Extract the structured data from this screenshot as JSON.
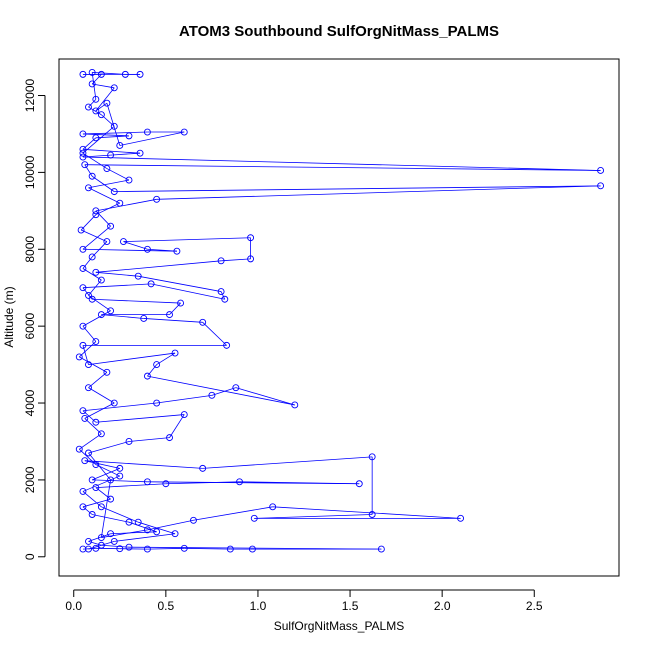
{
  "chart_data": {
    "type": "line",
    "title": "ATOM3 Southbound SulfOrgNitMass_PALMS",
    "xlabel": "SulfOrgNitMass_PALMS",
    "ylabel": "Altitude (m)",
    "xlim": [
      -0.08,
      2.96
    ],
    "ylim": [
      -500,
      12950
    ],
    "xticks": [
      0.0,
      0.5,
      1.0,
      1.5,
      2.0,
      2.5
    ],
    "xtick_labels": [
      "0.0",
      "0.5",
      "1.0",
      "1.5",
      "2.0",
      "2.5"
    ],
    "yticks": [
      0,
      2000,
      4000,
      6000,
      8000,
      10000,
      12000
    ],
    "ytick_labels": [
      "0",
      "2000",
      "4000",
      "6000",
      "8000",
      "10000",
      "12000"
    ],
    "grid": false,
    "series_color": "#0000ff",
    "series": [
      {
        "marker": "open-circle",
        "points": [
          [
            0.05,
            200
          ],
          [
            0.12,
            220
          ],
          [
            0.25,
            210
          ],
          [
            0.4,
            200
          ],
          [
            0.6,
            220
          ],
          [
            0.85,
            200
          ],
          [
            0.97,
            200
          ],
          [
            1.67,
            200
          ],
          [
            0.3,
            250
          ],
          [
            0.15,
            300
          ],
          [
            0.08,
            400
          ],
          [
            0.2,
            600
          ],
          [
            0.45,
            650
          ],
          [
            0.3,
            900
          ],
          [
            0.1,
            1100
          ],
          [
            0.05,
            1300
          ],
          [
            0.2,
            1500
          ],
          [
            0.12,
            1800
          ],
          [
            0.5,
            1900
          ],
          [
            0.9,
            1950
          ],
          [
            1.55,
            1900
          ],
          [
            0.4,
            1950
          ],
          [
            0.1,
            2000
          ],
          [
            0.25,
            2300
          ],
          [
            0.06,
            2500
          ],
          [
            0.7,
            2300
          ],
          [
            1.62,
            2600
          ],
          [
            1.62,
            1100
          ],
          [
            0.98,
            1000
          ],
          [
            2.1,
            1000
          ],
          [
            1.08,
            1300
          ],
          [
            0.65,
            950
          ],
          [
            0.4,
            700
          ],
          [
            0.15,
            500
          ],
          [
            0.2,
            2000
          ],
          [
            0.08,
            2700
          ],
          [
            0.3,
            3000
          ],
          [
            0.52,
            3100
          ],
          [
            0.6,
            3700
          ],
          [
            0.12,
            3500
          ],
          [
            0.05,
            3800
          ],
          [
            0.45,
            4000
          ],
          [
            0.75,
            4200
          ],
          [
            0.88,
            4400
          ],
          [
            1.2,
            3950
          ],
          [
            0.4,
            4700
          ],
          [
            0.45,
            5000
          ],
          [
            0.55,
            5300
          ],
          [
            0.08,
            5000
          ],
          [
            0.05,
            5500
          ],
          [
            0.83,
            5500
          ],
          [
            0.7,
            6100
          ],
          [
            0.38,
            6200
          ],
          [
            0.15,
            6300
          ],
          [
            0.52,
            6300
          ],
          [
            0.58,
            6600
          ],
          [
            0.1,
            6700
          ],
          [
            0.05,
            7000
          ],
          [
            0.42,
            7100
          ],
          [
            0.82,
            6700
          ],
          [
            0.8,
            6900
          ],
          [
            0.35,
            7300
          ],
          [
            0.12,
            7400
          ],
          [
            0.8,
            7700
          ],
          [
            0.96,
            7750
          ],
          [
            0.96,
            8300
          ],
          [
            0.27,
            8200
          ],
          [
            0.4,
            8000
          ],
          [
            0.56,
            7950
          ],
          [
            0.05,
            8000
          ],
          [
            0.2,
            8600
          ],
          [
            0.12,
            9000
          ],
          [
            0.45,
            9300
          ],
          [
            2.86,
            9650
          ],
          [
            0.22,
            9500
          ],
          [
            0.1,
            9900
          ],
          [
            0.06,
            10200
          ],
          [
            2.86,
            10050
          ],
          [
            0.05,
            10400
          ],
          [
            0.2,
            10450
          ],
          [
            0.36,
            10500
          ],
          [
            0.05,
            10600
          ],
          [
            0.12,
            10900
          ],
          [
            0.3,
            10950
          ],
          [
            0.05,
            11000
          ],
          [
            0.4,
            11050
          ],
          [
            0.6,
            11050
          ],
          [
            0.25,
            10700
          ],
          [
            0.18,
            11800
          ],
          [
            0.12,
            11600
          ],
          [
            0.22,
            12200
          ],
          [
            0.1,
            12300
          ],
          [
            0.15,
            12550
          ],
          [
            0.05,
            12550
          ],
          [
            0.36,
            12550
          ],
          [
            0.28,
            12550
          ],
          [
            0.1,
            12600
          ],
          [
            0.12,
            11900
          ],
          [
            0.08,
            11700
          ],
          [
            0.15,
            11500
          ],
          [
            0.22,
            11200
          ],
          [
            0.05,
            10500
          ],
          [
            0.18,
            10100
          ],
          [
            0.3,
            9800
          ],
          [
            0.08,
            9600
          ],
          [
            0.25,
            9200
          ],
          [
            0.12,
            8900
          ],
          [
            0.04,
            8500
          ],
          [
            0.18,
            8200
          ],
          [
            0.1,
            7800
          ],
          [
            0.05,
            7500
          ],
          [
            0.15,
            7200
          ],
          [
            0.08,
            6800
          ],
          [
            0.2,
            6400
          ],
          [
            0.05,
            6000
          ],
          [
            0.12,
            5600
          ],
          [
            0.03,
            5200
          ],
          [
            0.18,
            4800
          ],
          [
            0.08,
            4400
          ],
          [
            0.22,
            4000
          ],
          [
            0.06,
            3600
          ],
          [
            0.15,
            3200
          ],
          [
            0.03,
            2800
          ],
          [
            0.12,
            2400
          ],
          [
            0.25,
            2100
          ],
          [
            0.05,
            1700
          ],
          [
            0.15,
            1300
          ],
          [
            0.35,
            900
          ],
          [
            0.55,
            600
          ],
          [
            0.22,
            400
          ],
          [
            0.08,
            200
          ]
        ]
      }
    ]
  }
}
